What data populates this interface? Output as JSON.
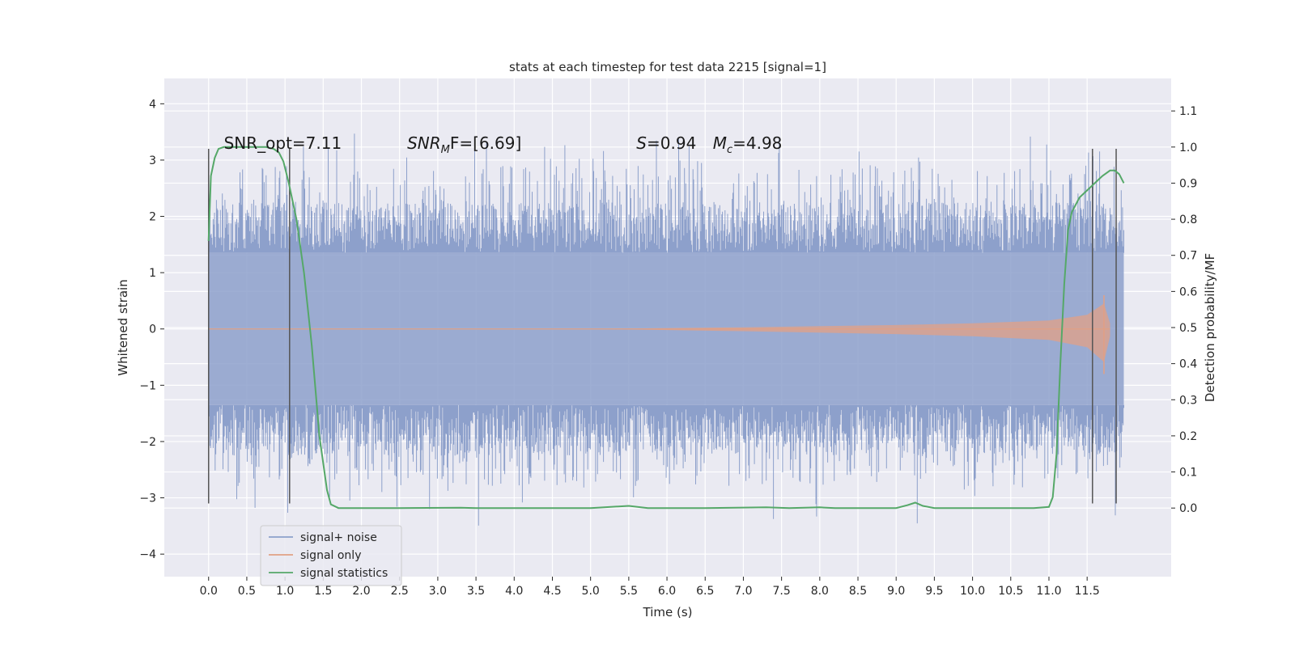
{
  "chart_data": {
    "type": "line",
    "title": "stats at each timestep for test data 2215 [signal=1]",
    "xlabel": "Time (s)",
    "ylabel": "Whitened strain",
    "y2label": "Detection probability/MF",
    "xlim": [
      -0.58,
      12.6
    ],
    "ylim": [
      -4.4,
      4.45
    ],
    "y2lim": [
      -0.19,
      1.19
    ],
    "x_ticks": [
      0.0,
      0.5,
      1.0,
      1.5,
      2.0,
      2.5,
      3.0,
      3.5,
      4.0,
      4.5,
      5.0,
      5.5,
      6.0,
      6.5,
      7.0,
      7.5,
      8.0,
      8.5,
      9.0,
      9.5,
      10.0,
      10.5,
      11.0,
      11.5
    ],
    "x_tick_labels": [
      "0.0",
      "0.5",
      "1.0",
      "1.5",
      "2.0",
      "2.5",
      "3.0",
      "3.5",
      "4.0",
      "4.5",
      "5.0",
      "5.5",
      "6.0",
      "6.5",
      "7.0",
      "7.5",
      "8.0",
      "8.5",
      "9.0",
      "9.5",
      "10.0",
      "10.5",
      "11.0",
      "11.5"
    ],
    "y_ticks": [
      -4,
      -3,
      -2,
      -1,
      0,
      1,
      2,
      3,
      4
    ],
    "y_tick_labels": [
      "−4",
      "−3",
      "−2",
      "−1",
      "0",
      "1",
      "2",
      "3",
      "4"
    ],
    "y2_ticks": [
      0.0,
      0.1,
      0.2,
      0.3,
      0.4,
      0.5,
      0.6,
      0.7,
      0.8,
      0.9,
      1.0,
      1.1
    ],
    "y2_tick_labels": [
      "0.0",
      "0.1",
      "0.2",
      "0.3",
      "0.4",
      "0.5",
      "0.6",
      "0.7",
      "0.8",
      "0.9",
      "1.0",
      "1.1"
    ],
    "grid": true,
    "legend_placement": "lower-left",
    "colors": {
      "background": "#eaeaf2",
      "noise": "#8da0cb",
      "signal_only": "#e1a085",
      "statistics": "#55a868",
      "markers": "#555555"
    },
    "series": [
      {
        "name": "signal+ noise",
        "kind": "noise-band",
        "x_range": [
          0.0,
          11.98
        ],
        "core_amplitude": 1.35,
        "spike_max": [
          3.5,
          -3.5
        ]
      },
      {
        "name": "signal only",
        "kind": "chirp-envelope",
        "x_range": [
          0.0,
          11.8
        ],
        "envelope": [
          [
            5.0,
            0.0
          ],
          [
            7.0,
            0.03
          ],
          [
            9.0,
            0.07
          ],
          [
            10.0,
            0.1
          ],
          [
            11.0,
            0.15
          ],
          [
            11.5,
            0.25
          ],
          [
            11.72,
            0.45
          ],
          [
            11.8,
            0.1
          ]
        ],
        "peak": [
          0.6,
          -0.8
        ]
      },
      {
        "name": "signal statistics",
        "kind": "line",
        "axis": "y2",
        "x": [
          0.0,
          0.03,
          0.08,
          0.13,
          0.2,
          0.35,
          0.55,
          0.75,
          0.85,
          0.92,
          0.98,
          1.05,
          1.15,
          1.25,
          1.35,
          1.45,
          1.55,
          1.6,
          1.7,
          1.8,
          2.5,
          3.3,
          3.5,
          5.0,
          5.5,
          5.75,
          6.5,
          7.3,
          7.6,
          8.0,
          8.2,
          9.0,
          9.15,
          9.25,
          9.35,
          9.5,
          10.0,
          10.8,
          11.0,
          11.05,
          11.1,
          11.15,
          11.2,
          11.25,
          11.3,
          11.4,
          11.55,
          11.7,
          11.8,
          11.86,
          11.92,
          11.98
        ],
        "y": [
          0.74,
          0.92,
          0.97,
          0.995,
          1.0,
          1.0,
          1.0,
          1.0,
          0.995,
          0.985,
          0.96,
          0.9,
          0.8,
          0.65,
          0.45,
          0.2,
          0.05,
          0.01,
          0.0,
          0.0,
          0.0,
          0.001,
          0.0,
          0.0,
          0.006,
          0.0,
          0.0,
          0.002,
          0.0,
          0.002,
          0.0,
          0.0,
          0.008,
          0.015,
          0.006,
          0.0,
          0.0,
          0.0,
          0.003,
          0.03,
          0.15,
          0.4,
          0.62,
          0.77,
          0.82,
          0.86,
          0.89,
          0.92,
          0.935,
          0.935,
          0.925,
          0.9
        ]
      }
    ],
    "vertical_markers": [
      0.0,
      1.06,
      11.57,
      11.88
    ],
    "vertical_marker_range": [
      -3.1,
      3.2
    ],
    "annotations": {
      "snr_opt": "SNR_opt=7.11",
      "snr_mf_main": "SNR",
      "snr_mf_sub": "M",
      "snr_mf_rest": "F=[6.69]",
      "s_var": "S",
      "s_value": "=0.94",
      "mc_var": "M",
      "mc_sub": "c",
      "mc_value": "=4.98"
    },
    "annotation_positions_x": [
      0.2,
      2.6,
      5.6,
      6.6
    ]
  }
}
